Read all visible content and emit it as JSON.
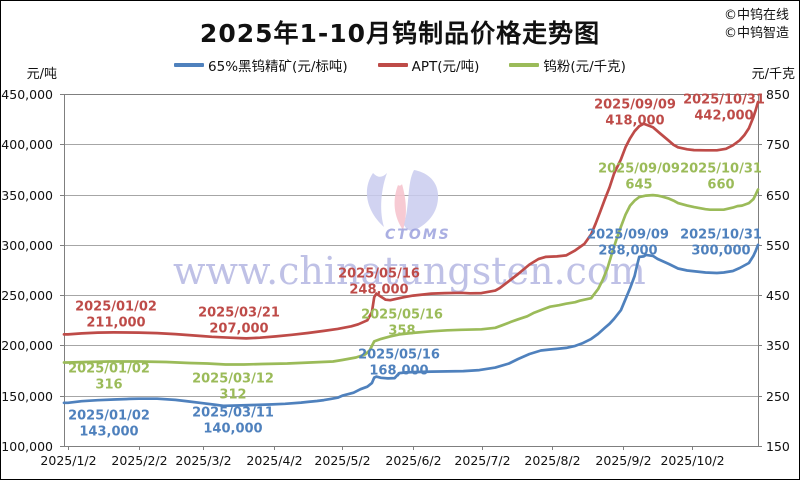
{
  "page": {
    "title": "2025年1-10月钨制品价格走势图",
    "credits": [
      "©中钨在线",
      "©中钨智造"
    ]
  },
  "watermark": {
    "text": "www.chinatungsten.com",
    "logo_text": "CTOMS"
  },
  "axes": {
    "left_unit": "元/吨",
    "right_unit": "元/千克",
    "left_ticks": [
      {
        "v": 450000,
        "label": "450,000"
      },
      {
        "v": 400000,
        "label": "400,000"
      },
      {
        "v": 350000,
        "label": "350,000"
      },
      {
        "v": 300000,
        "label": "300,000"
      },
      {
        "v": 250000,
        "label": "250,000"
      },
      {
        "v": 200000,
        "label": "200,000"
      },
      {
        "v": 150000,
        "label": "150,000"
      },
      {
        "v": 100000,
        "label": "100,000"
      }
    ],
    "right_ticks": [
      {
        "v": 850,
        "label": "850"
      },
      {
        "v": 750,
        "label": "750"
      },
      {
        "v": 650,
        "label": "650"
      },
      {
        "v": 550,
        "label": "550"
      },
      {
        "v": 450,
        "label": "450"
      },
      {
        "v": 350,
        "label": "350"
      },
      {
        "v": 250,
        "label": "250"
      },
      {
        "v": 150,
        "label": "150"
      }
    ],
    "x_ticks": [
      {
        "day": 0,
        "label": "2025/1/2"
      },
      {
        "day": 31,
        "label": "2025/2/2"
      },
      {
        "day": 59,
        "label": "2025/3/2"
      },
      {
        "day": 90,
        "label": "2025/4/2"
      },
      {
        "day": 120,
        "label": "2025/5/2"
      },
      {
        "day": 151,
        "label": "2025/6/2"
      },
      {
        "day": 181,
        "label": "2025/7/2"
      },
      {
        "day": 212,
        "label": "2025/8/2"
      },
      {
        "day": 243,
        "label": "2025/9/2"
      },
      {
        "day": 273,
        "label": "2025/10/2"
      }
    ]
  },
  "chart_data": {
    "type": "line",
    "title": "2025年1-10月钨制品价格走势图",
    "x_range_days": [
      0,
      302
    ],
    "x_start_date": "2025/1/2",
    "x_end_date": "2025/10/31",
    "y_left": {
      "min": 100000,
      "max": 450000,
      "step": 50000,
      "unit": "元/吨"
    },
    "y_right": {
      "min": 150,
      "max": 850,
      "step": 100,
      "unit": "元/千克"
    },
    "grid": "horizontal-only",
    "legend_position": "top-center",
    "series": [
      {
        "id": "wolframite",
        "label": "65%黑钨精矿(元/标吨)",
        "color": "#4F81BD",
        "axis": "left",
        "points": [
          [
            0,
            143000
          ],
          [
            6,
            144500
          ],
          [
            13,
            145500
          ],
          [
            20,
            146200
          ],
          [
            27,
            146800
          ],
          [
            31,
            147000
          ],
          [
            39,
            147000
          ],
          [
            47,
            145800
          ],
          [
            53,
            144200
          ],
          [
            59,
            142600
          ],
          [
            64,
            141200
          ],
          [
            68,
            140000
          ],
          [
            74,
            140300
          ],
          [
            81,
            140800
          ],
          [
            88,
            141300
          ],
          [
            95,
            142000
          ],
          [
            102,
            143200
          ],
          [
            105,
            143800
          ],
          [
            109,
            144700
          ],
          [
            112,
            145600
          ],
          [
            115,
            146800
          ],
          [
            118,
            148000
          ],
          [
            120,
            150000
          ],
          [
            125,
            153000
          ],
          [
            128,
            156500
          ],
          [
            131,
            159000
          ],
          [
            133,
            162500
          ],
          [
            134,
            168000
          ],
          [
            135,
            169000
          ],
          [
            137,
            167800
          ],
          [
            140,
            167200
          ],
          [
            143,
            167500
          ],
          [
            145,
            172500
          ],
          [
            148,
            173200
          ],
          [
            151,
            173500
          ],
          [
            159,
            174000
          ],
          [
            166,
            174200
          ],
          [
            173,
            174500
          ],
          [
            180,
            175500
          ],
          [
            187,
            178000
          ],
          [
            193,
            182000
          ],
          [
            197,
            186500
          ],
          [
            202,
            191500
          ],
          [
            207,
            195000
          ],
          [
            211,
            196000
          ],
          [
            214,
            196500
          ],
          [
            218,
            197500
          ],
          [
            222,
            199500
          ],
          [
            225,
            202000
          ],
          [
            229,
            206500
          ],
          [
            232,
            211500
          ],
          [
            235,
            217500
          ],
          [
            237,
            221500
          ],
          [
            239,
            226500
          ],
          [
            242,
            235000
          ],
          [
            244,
            246000
          ],
          [
            246,
            257000
          ],
          [
            248,
            269000
          ],
          [
            249,
            279000
          ],
          [
            250,
            288000
          ],
          [
            252,
            288500
          ],
          [
            253,
            290000
          ],
          [
            256,
            289000
          ],
          [
            258,
            286000
          ],
          [
            263,
            281000
          ],
          [
            267,
            276500
          ],
          [
            271,
            274500
          ],
          [
            279,
            272500
          ],
          [
            284,
            272000
          ],
          [
            287,
            272500
          ],
          [
            291,
            274000
          ],
          [
            294,
            277000
          ],
          [
            298,
            282000
          ],
          [
            300,
            289000
          ],
          [
            301,
            294000
          ],
          [
            302,
            300000
          ]
        ],
        "annotations": [
          {
            "date": "2025/01/02",
            "label": "143,000",
            "day": 18,
            "anchor": 122000
          },
          {
            "date": "2025/03/11",
            "label": "140,000",
            "day": 72,
            "anchor": 125000
          },
          {
            "date": "2025/05/16",
            "label": "168,000",
            "day": 145,
            "anchor": 182500
          },
          {
            "date": "2025/09/09",
            "label": "288,000",
            "day": 245,
            "anchor": 302000
          },
          {
            "date": "2025/10/31",
            "label": "300,000",
            "day": 286,
            "anchor": 302000
          }
        ]
      },
      {
        "id": "apt",
        "label": "APT(元/吨)",
        "color": "#BE4B48",
        "axis": "left",
        "points": [
          [
            0,
            211000
          ],
          [
            6,
            212000
          ],
          [
            13,
            212800
          ],
          [
            20,
            213000
          ],
          [
            31,
            212800
          ],
          [
            39,
            212300
          ],
          [
            47,
            211300
          ],
          [
            53,
            210300
          ],
          [
            59,
            209300
          ],
          [
            63,
            208600
          ],
          [
            71,
            207700
          ],
          [
            78,
            207000
          ],
          [
            84,
            207700
          ],
          [
            91,
            209000
          ],
          [
            98,
            210600
          ],
          [
            105,
            212400
          ],
          [
            112,
            214400
          ],
          [
            118,
            216400
          ],
          [
            124,
            219000
          ],
          [
            127,
            221000
          ],
          [
            131,
            225000
          ],
          [
            133,
            233000
          ],
          [
            134,
            248000
          ],
          [
            135,
            251500
          ],
          [
            137,
            248500
          ],
          [
            139,
            245500
          ],
          [
            141,
            245000
          ],
          [
            144,
            246500
          ],
          [
            147,
            248000
          ],
          [
            151,
            249500
          ],
          [
            159,
            251500
          ],
          [
            165,
            252000
          ],
          [
            172,
            252300
          ],
          [
            176,
            251800
          ],
          [
            181,
            252000
          ],
          [
            187,
            254500
          ],
          [
            189,
            257000
          ],
          [
            193,
            264000
          ],
          [
            197,
            271000
          ],
          [
            202,
            280500
          ],
          [
            206,
            286000
          ],
          [
            209,
            288000
          ],
          [
            214,
            288500
          ],
          [
            218,
            289500
          ],
          [
            222,
            294500
          ],
          [
            226,
            301000
          ],
          [
            229,
            310500
          ],
          [
            231,
            321500
          ],
          [
            233,
            333500
          ],
          [
            235,
            345500
          ],
          [
            237,
            357000
          ],
          [
            239,
            371000
          ],
          [
            242,
            385000
          ],
          [
            244,
            397000
          ],
          [
            246,
            406000
          ],
          [
            248,
            413000
          ],
          [
            250,
            418000
          ],
          [
            252,
            420500
          ],
          [
            256,
            417000
          ],
          [
            259,
            411000
          ],
          [
            263,
            403500
          ],
          [
            265,
            399500
          ],
          [
            267,
            397000
          ],
          [
            271,
            395000
          ],
          [
            274,
            394200
          ],
          [
            279,
            394000
          ],
          [
            284,
            394000
          ],
          [
            288,
            395500
          ],
          [
            291,
            399000
          ],
          [
            294,
            404000
          ],
          [
            296,
            409000
          ],
          [
            298,
            416000
          ],
          [
            300,
            427000
          ],
          [
            301,
            434000
          ],
          [
            302,
            442000
          ]
        ],
        "annotations": [
          {
            "date": "2025/01/02",
            "label": "211,000",
            "day": 21,
            "anchor": 230000
          },
          {
            "date": "2025/03/21",
            "label": "207,000",
            "day": 75,
            "anchor": 224000
          },
          {
            "date": "2025/05/16",
            "label": "248,000",
            "day": 136,
            "anchor": 263000
          },
          {
            "date": "2025/09/09",
            "label": "418,000",
            "day": 248,
            "anchor": 431000
          },
          {
            "date": "2025/10/31",
            "label": "442,000",
            "day": 287,
            "anchor": 436000
          }
        ]
      },
      {
        "id": "tungsten-powder",
        "label": "钨粉(元/千克)",
        "color": "#9BBB59",
        "axis": "right",
        "points": [
          [
            0,
            316
          ],
          [
            8,
            317
          ],
          [
            18,
            318
          ],
          [
            31,
            318
          ],
          [
            43,
            317
          ],
          [
            53,
            315
          ],
          [
            61,
            314
          ],
          [
            69,
            312
          ],
          [
            77,
            312
          ],
          [
            85,
            313
          ],
          [
            96,
            314
          ],
          [
            106,
            316
          ],
          [
            116,
            318
          ],
          [
            120,
            321
          ],
          [
            126,
            326
          ],
          [
            130,
            332
          ],
          [
            132,
            340
          ],
          [
            134,
            358
          ],
          [
            137,
            363
          ],
          [
            141,
            368
          ],
          [
            145,
            372
          ],
          [
            151,
            375
          ],
          [
            159,
            378
          ],
          [
            166,
            380
          ],
          [
            172,
            381
          ],
          [
            181,
            382
          ],
          [
            187,
            385
          ],
          [
            190,
            390
          ],
          [
            194,
            397
          ],
          [
            197,
            402
          ],
          [
            201,
            408
          ],
          [
            204,
            415
          ],
          [
            208,
            422
          ],
          [
            211,
            427
          ],
          [
            215,
            430
          ],
          [
            218,
            433
          ],
          [
            222,
            436
          ],
          [
            224,
            439
          ],
          [
            227,
            442
          ],
          [
            229,
            444
          ],
          [
            230,
            450
          ],
          [
            232,
            462
          ],
          [
            234,
            480
          ],
          [
            236,
            502
          ],
          [
            237,
            517
          ],
          [
            238,
            532
          ],
          [
            240,
            560
          ],
          [
            242,
            586
          ],
          [
            244,
            610
          ],
          [
            246,
            628
          ],
          [
            248,
            638
          ],
          [
            250,
            645
          ],
          [
            253,
            648
          ],
          [
            256,
            649
          ],
          [
            258,
            648
          ],
          [
            260,
            646
          ],
          [
            263,
            642
          ],
          [
            265,
            638
          ],
          [
            267,
            633
          ],
          [
            271,
            628
          ],
          [
            274,
            625
          ],
          [
            279,
            621
          ],
          [
            281,
            620
          ],
          [
            287,
            620
          ],
          [
            291,
            624
          ],
          [
            293,
            627
          ],
          [
            295,
            628
          ],
          [
            298,
            633
          ],
          [
            300,
            641
          ],
          [
            301,
            650
          ],
          [
            302,
            660
          ]
        ],
        "annotations": [
          {
            "date": "2025/01/02",
            "label": "316",
            "day": 18,
            "anchor": 287
          },
          {
            "date": "2025/03/12",
            "label": "312",
            "day": 72,
            "anchor": 267
          },
          {
            "date": "2025/05/16",
            "label": "358",
            "day": 146,
            "anchor": 395
          },
          {
            "date": "2025/09/09",
            "label": "645",
            "day": 250,
            "anchor": 684
          },
          {
            "date": "2025/10/31",
            "label": "660",
            "day": 286,
            "anchor": 684
          }
        ]
      }
    ]
  }
}
